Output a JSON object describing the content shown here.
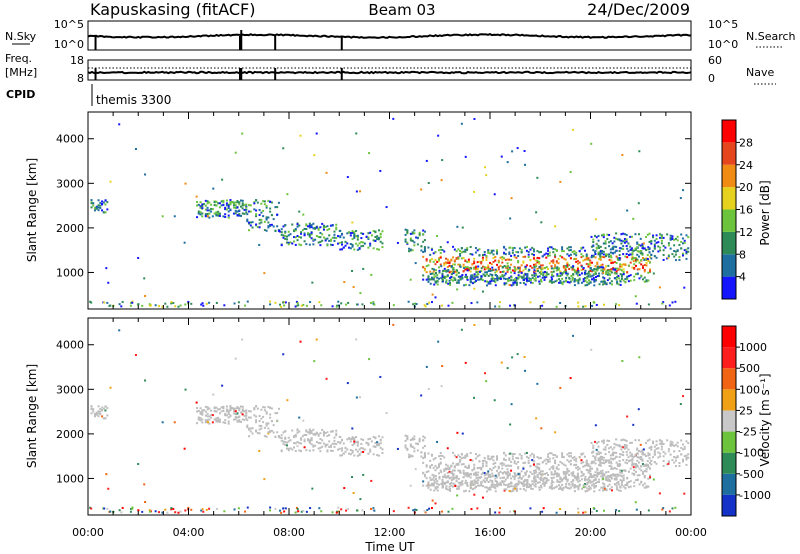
{
  "header": {
    "station": "Kapuskasing (fitACF)",
    "beam": "Beam 03",
    "date": "24/Dec/2009"
  },
  "summary": {
    "nsky_label": "N.Sky",
    "nsky_top": "10^5",
    "nsky_bottom": "10^0",
    "nsearch_label": "N.Search",
    "nsearch_top": "10^5",
    "nsearch_bottom": "10^0",
    "freq_label": "Freq.",
    "freq_unit": "[MHz]",
    "freq_top": "18",
    "freq_bottom": "8",
    "nave_label": "Nave",
    "nave_top": "60",
    "nave_bottom": "0",
    "cpid_label": "CPID",
    "cpid_value": "themis 3300"
  },
  "colors": {
    "frame": "#000000",
    "ground_scatter": "#bdbdbd"
  },
  "chart_data": [
    {
      "type": "heatmap",
      "name": "power",
      "ylabel": "Slant Range [km]",
      "xlabel": "Time UT",
      "xlim": [
        0,
        24
      ],
      "ylim": [
        180,
        4600
      ],
      "x_ticks": [
        "00:00",
        "04:00",
        "08:00",
        "12:00",
        "16:00",
        "20:00",
        "00:00"
      ],
      "y_ticks": [
        1000,
        2000,
        3000,
        4000
      ],
      "colorbar": {
        "label": "Power [dB]",
        "ticks": [
          "4",
          "8",
          "12",
          "16",
          "20",
          "24",
          "28"
        ],
        "colors": [
          "#1414ff",
          "#1e6ea0",
          "#2e8b57",
          "#6cc43c",
          "#e6d21e",
          "#f08c14",
          "#e6461e",
          "#ff0000"
        ]
      },
      "scatter_bands": [
        {
          "t0": 0.1,
          "t1": 0.8,
          "r_center": 2520,
          "r_width": 150,
          "density": 0.55
        },
        {
          "t0": 4.3,
          "t1": 6.3,
          "r_center": 2450,
          "r_width": 200,
          "density": 0.65
        },
        {
          "t0": 6.3,
          "t1": 7.6,
          "r_center": 2300,
          "r_width": 350,
          "density": 0.6
        },
        {
          "t0": 7.6,
          "t1": 10.0,
          "r_center": 1880,
          "r_width": 250,
          "density": 0.6
        },
        {
          "t0": 10.0,
          "t1": 11.7,
          "r_center": 1750,
          "r_width": 220,
          "density": 0.5
        },
        {
          "t0": 12.6,
          "t1": 13.4,
          "r_center": 1750,
          "r_width": 250,
          "density": 0.5
        },
        {
          "t0": 13.3,
          "t1": 22.4,
          "r_center": 1200,
          "r_width": 400,
          "density": 0.85
        },
        {
          "t0": 13.6,
          "t1": 21.2,
          "r_center": 950,
          "r_width": 220,
          "density": 0.45
        },
        {
          "t0": 20.0,
          "t1": 23.9,
          "r_center": 1600,
          "r_width": 300,
          "density": 0.55
        }
      ]
    },
    {
      "type": "heatmap",
      "name": "velocity",
      "ylabel": "Slant Range [km]",
      "xlabel": "Time UT",
      "xlim": [
        0,
        24
      ],
      "ylim": [
        180,
        4600
      ],
      "x_ticks": [
        "00:00",
        "04:00",
        "08:00",
        "12:00",
        "16:00",
        "20:00",
        "00:00"
      ],
      "y_ticks": [
        1000,
        2000,
        3000,
        4000
      ],
      "colorbar": {
        "label": "Velocity [m s⁻¹]",
        "ticks": [
          "1000",
          "500",
          "100",
          "25",
          "-25",
          "-100",
          "-500",
          "-1000"
        ],
        "colors": [
          "#1432c8",
          "#1e6ea0",
          "#2e8b57",
          "#6cc43c",
          "#c8c8c8",
          "#f0a014",
          "#f06414",
          "#ff1e1e",
          "#ff0000"
        ]
      }
    }
  ]
}
